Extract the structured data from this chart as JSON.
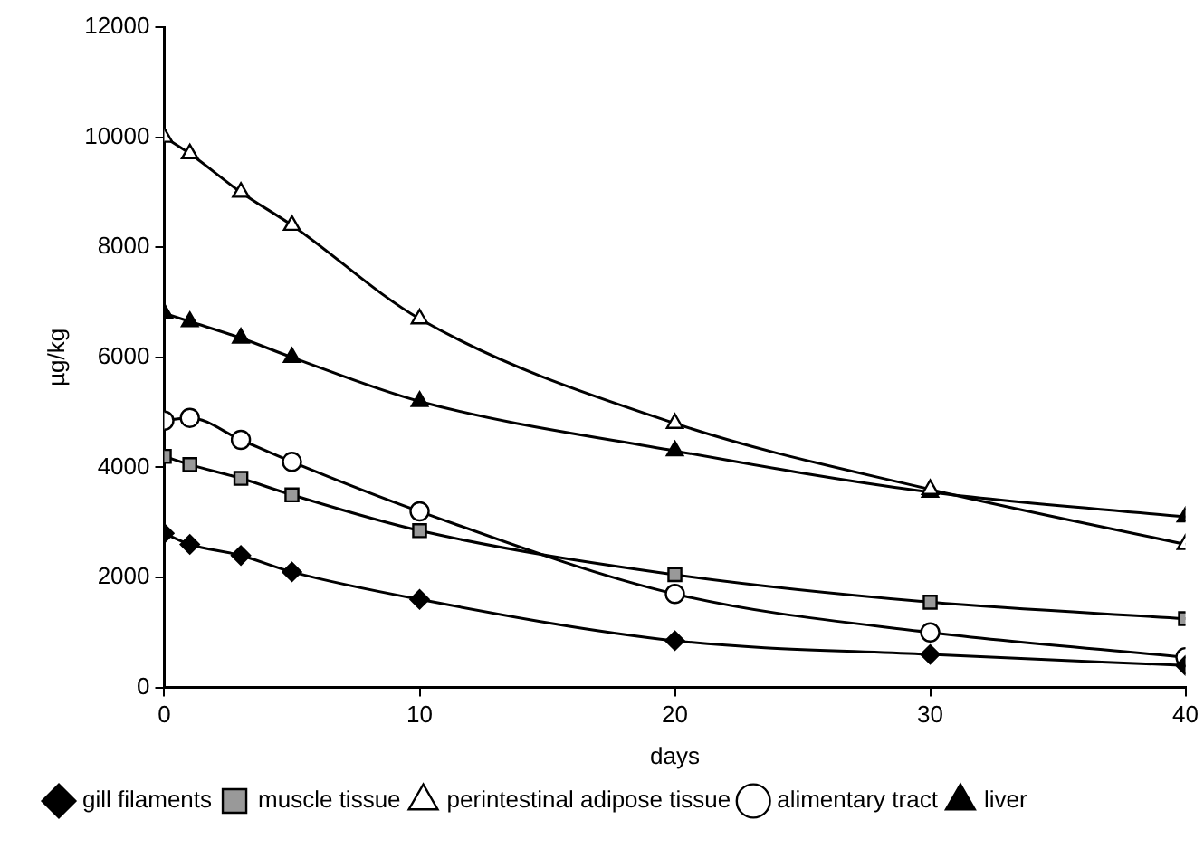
{
  "chart_data": {
    "type": "line",
    "xlabel": "days",
    "ylabel": "µg/kg",
    "x": [
      0,
      1,
      3,
      5,
      10,
      20,
      30,
      40
    ],
    "xlim": [
      0,
      40
    ],
    "xticks": [
      0,
      10,
      20,
      30,
      40
    ],
    "ylim": [
      0,
      12000
    ],
    "yticks": [
      0,
      2000,
      4000,
      6000,
      8000,
      10000,
      12000
    ],
    "grid": false,
    "legend": "bottom",
    "series": [
      {
        "name": "gill filaments",
        "color": "#000000",
        "marker": "diamond",
        "values": [
          2800,
          2600,
          2400,
          2100,
          1600,
          850,
          600,
          400
        ]
      },
      {
        "name": "muscle tissue",
        "color": "#000000",
        "marker": "square",
        "values": [
          4200,
          4050,
          3800,
          3500,
          2850,
          2050,
          1550,
          1250
        ]
      },
      {
        "name": "perintestinal adipose tissue",
        "color": "#000000",
        "marker": "triangle",
        "values": [
          10000,
          9700,
          9000,
          8400,
          6700,
          4800,
          3600,
          2600
        ]
      },
      {
        "name": "alimentary tract",
        "color": "#000000",
        "marker": "circle",
        "values": [
          4850,
          4900,
          4500,
          4100,
          3200,
          1700,
          1000,
          550
        ]
      },
      {
        "name": "liver",
        "color": "#000000",
        "marker": "triangle",
        "values": [
          6800,
          6650,
          6350,
          6000,
          5200,
          4300,
          3550,
          3100
        ]
      }
    ]
  }
}
